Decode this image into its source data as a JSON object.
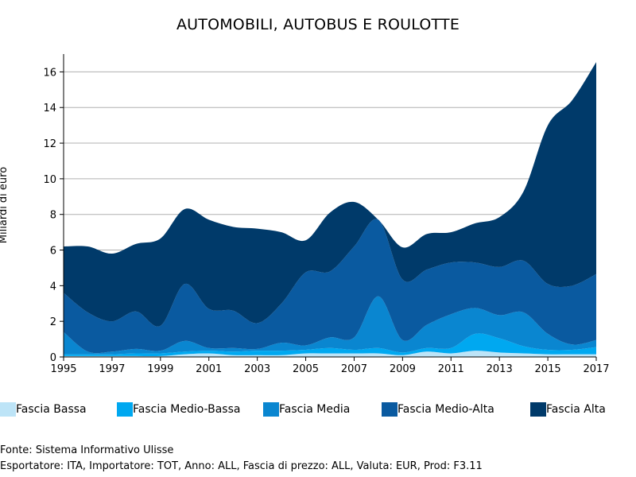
{
  "chart_data": {
    "type": "area",
    "stacked": true,
    "title": "AUTOMOBILI, AUTOBUS E ROULOTTE",
    "xlabel": "",
    "ylabel": "Miliardi di euro",
    "x": [
      1995,
      1996,
      1997,
      1998,
      1999,
      2000,
      2001,
      2002,
      2003,
      2004,
      2005,
      2006,
      2007,
      2008,
      2009,
      2010,
      2011,
      2012,
      2013,
      2014,
      2015,
      2016,
      2017
    ],
    "xticks": [
      "1995",
      "1997",
      "1999",
      "2001",
      "2003",
      "2005",
      "2007",
      "2009",
      "2011",
      "2013",
      "2015",
      "2017"
    ],
    "yticks": [
      "0",
      "2",
      "4",
      "6",
      "8",
      "10",
      "12",
      "14",
      "16"
    ],
    "ylim": [
      0,
      17
    ],
    "grid": true,
    "legend_position": "bottom",
    "series": [
      {
        "name": "Fascia Bassa",
        "color": "#bde4f7",
        "values": [
          0.05,
          0.05,
          0.05,
          0.05,
          0.05,
          0.15,
          0.2,
          0.1,
          0.1,
          0.1,
          0.2,
          0.2,
          0.2,
          0.2,
          0.1,
          0.3,
          0.2,
          0.35,
          0.25,
          0.2,
          0.15,
          0.15,
          0.15
        ]
      },
      {
        "name": "Fascia Medio-Bassa",
        "color": "#00a8f0",
        "values": [
          0.1,
          0.1,
          0.1,
          0.15,
          0.15,
          0.15,
          0.15,
          0.2,
          0.25,
          0.25,
          0.2,
          0.3,
          0.2,
          0.3,
          0.15,
          0.2,
          0.3,
          0.95,
          0.8,
          0.4,
          0.25,
          0.25,
          0.4
        ]
      },
      {
        "name": "Fascia Media",
        "color": "#0a86d0",
        "values": [
          1.25,
          0.15,
          0.15,
          0.25,
          0.15,
          0.6,
          0.15,
          0.2,
          0.1,
          0.45,
          0.25,
          0.6,
          0.7,
          2.9,
          0.7,
          1.3,
          1.9,
          1.45,
          1.3,
          1.9,
          0.9,
          0.3,
          0.4
        ]
      },
      {
        "name": "Fascia Medio-Alta",
        "color": "#0a5aa0",
        "values": [
          2.2,
          2.2,
          1.7,
          2.1,
          1.4,
          3.2,
          2.2,
          2.1,
          1.45,
          2.2,
          4.1,
          3.7,
          5.1,
          4.3,
          3.4,
          3.1,
          2.9,
          2.55,
          2.7,
          2.9,
          2.8,
          3.3,
          3.7
        ]
      },
      {
        "name": "Fascia Alta",
        "color": "#003a6a",
        "values": [
          2.6,
          3.7,
          3.8,
          3.8,
          4.9,
          4.2,
          5.0,
          4.7,
          5.3,
          4.0,
          1.8,
          3.3,
          2.5,
          0.0,
          1.8,
          2.0,
          1.7,
          2.2,
          2.8,
          3.9,
          8.9,
          10.4,
          11.9
        ]
      }
    ]
  },
  "footer": {
    "source": "Fonte: Sistema Informativo Ulisse",
    "details": "Esportatore: ITA, Importatore: TOT, Anno: ALL, Fascia di prezzo: ALL, Valuta: EUR, Prod: F3.11"
  }
}
